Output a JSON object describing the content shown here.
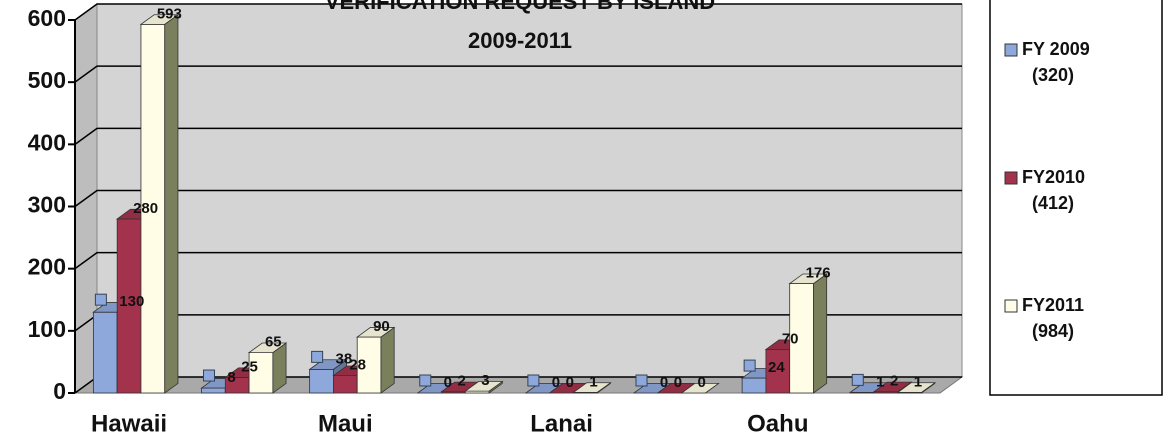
{
  "chart_data": {
    "type": "bar3d",
    "title": "VERIFICATION REQUEST BY ISLAND",
    "subtitle": "2009-2011",
    "categories": [
      "Hawaii",
      null,
      "Maui",
      null,
      "Lanai",
      null,
      "Oahu",
      null
    ],
    "series": [
      {
        "name": "FY 2009",
        "legend_note": "(320)",
        "color": "#8ea8dc",
        "values": [
          130,
          8,
          38,
          0,
          0,
          0,
          24,
          1
        ]
      },
      {
        "name": "FY2010",
        "legend_note": "(412)",
        "color": "#a3324c",
        "values": [
          280,
          25,
          28,
          2,
          0,
          0,
          70,
          2
        ]
      },
      {
        "name": "FY2011",
        "legend_note": "(984)",
        "color": "#fffde6",
        "values": [
          593,
          65,
          90,
          3,
          1,
          0,
          176,
          1
        ]
      }
    ],
    "ylim": [
      0,
      600
    ],
    "yticks": [
      0,
      100,
      200,
      300,
      400,
      500,
      600
    ],
    "grid": true,
    "legend": "right"
  }
}
